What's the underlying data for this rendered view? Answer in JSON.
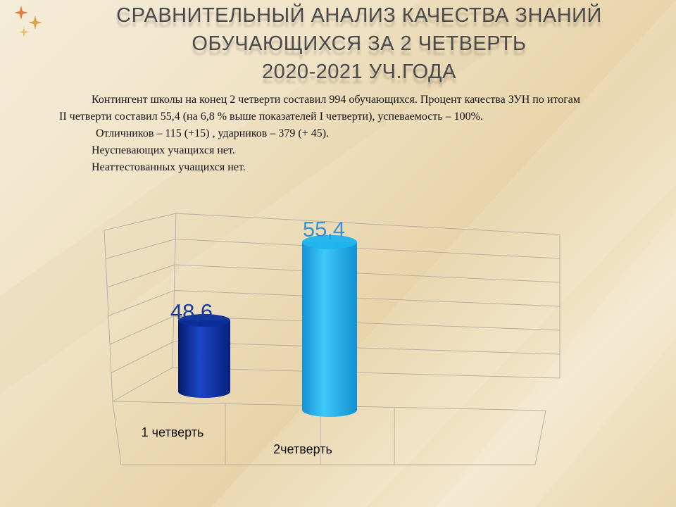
{
  "title": {
    "line1": "СРАВНИТЕЛЬНЫЙ АНАЛИЗ КАЧЕСТВА ЗНАНИЙ",
    "line2": "ОБУЧАЮЩИХСЯ ЗА 2 ЧЕТВЕРТЬ",
    "line3": "2020-2021 УЧ.ГОДА"
  },
  "text": {
    "p1": "Контингент школы на конец 2 четверти составил  994 обучающихся.  Процент качества ЗУН по итогам II  четверти составил  55,4 (на 6,8 % выше показателей  I четверти),  успеваемость  – 100%.",
    "p2": "Отличников  – 115 (+15) , ударников  – 379 (+ 45).",
    "p3": "Неуспевающих  учащихся   нет.",
    "p4": "Неаттестованных  учащихся  нет."
  },
  "colors": {
    "series_1": "#0a2d9a",
    "series_2": "#1fb4ee",
    "label_1": "#1a3b9c",
    "label_2": "#3a93d8"
  },
  "chart_data": {
    "type": "bar",
    "style": "3d-cylinder",
    "categories": [
      "1 четверть",
      "2четверть"
    ],
    "values": [
      48.6,
      55.4
    ],
    "data_labels": [
      "48,6",
      "55,4"
    ],
    "ylim": [
      0,
      60
    ],
    "grid": true,
    "legend": "none"
  }
}
